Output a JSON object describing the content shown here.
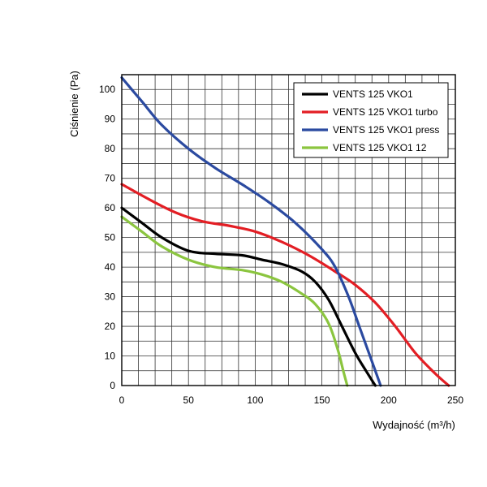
{
  "chart_data": {
    "type": "line",
    "title": "",
    "xlabel": "Wydajność (m³/h)",
    "ylabel": "Ciśnienie (Pa)",
    "xlim": [
      0,
      250
    ],
    "ylim": [
      0,
      105
    ],
    "x_ticks": [
      0,
      50,
      100,
      150,
      200,
      250
    ],
    "y_ticks": [
      0,
      10,
      20,
      30,
      40,
      50,
      60,
      70,
      80,
      90,
      100
    ],
    "x_minor_step": 12.5,
    "y_minor_step": 5,
    "grid": true,
    "legend_position": "top-right",
    "series": [
      {
        "name": "VENTS 125 VKO1",
        "color": "#000000",
        "points": [
          [
            0,
            60
          ],
          [
            15,
            55
          ],
          [
            30,
            50
          ],
          [
            50,
            45.5
          ],
          [
            70,
            44.5
          ],
          [
            90,
            44
          ],
          [
            105,
            42.5
          ],
          [
            120,
            41
          ],
          [
            135,
            38.5
          ],
          [
            145,
            35
          ],
          [
            155,
            29
          ],
          [
            165,
            20
          ],
          [
            175,
            11
          ],
          [
            183,
            5
          ],
          [
            190,
            0
          ]
        ]
      },
      {
        "name": "VENTS 125 VKO1 turbo",
        "color": "#e31e24",
        "points": [
          [
            0,
            68
          ],
          [
            20,
            63
          ],
          [
            40,
            58.5
          ],
          [
            60,
            55.5
          ],
          [
            80,
            54
          ],
          [
            100,
            52
          ],
          [
            120,
            48.5
          ],
          [
            140,
            44
          ],
          [
            160,
            38.5
          ],
          [
            175,
            34
          ],
          [
            190,
            28
          ],
          [
            205,
            20
          ],
          [
            220,
            11
          ],
          [
            235,
            4
          ],
          [
            245,
            0
          ]
        ]
      },
      {
        "name": "VENTS 125 VKO1 press",
        "color": "#2b4aa0",
        "points": [
          [
            0,
            104
          ],
          [
            15,
            96
          ],
          [
            30,
            88
          ],
          [
            50,
            80
          ],
          [
            70,
            73.5
          ],
          [
            90,
            68
          ],
          [
            110,
            62
          ],
          [
            130,
            55
          ],
          [
            150,
            46
          ],
          [
            160,
            40
          ],
          [
            170,
            30
          ],
          [
            178,
            20
          ],
          [
            186,
            10
          ],
          [
            190,
            5
          ],
          [
            194,
            0
          ]
        ]
      },
      {
        "name": "VENTS 125 VKO1 12",
        "color": "#8bc53f",
        "points": [
          [
            0,
            57
          ],
          [
            15,
            52
          ],
          [
            30,
            47
          ],
          [
            50,
            42.5
          ],
          [
            70,
            40
          ],
          [
            90,
            39
          ],
          [
            105,
            37.5
          ],
          [
            120,
            35
          ],
          [
            135,
            31
          ],
          [
            145,
            27.5
          ],
          [
            155,
            21
          ],
          [
            162,
            12
          ],
          [
            166,
            5
          ],
          [
            169,
            0
          ]
        ]
      }
    ]
  }
}
